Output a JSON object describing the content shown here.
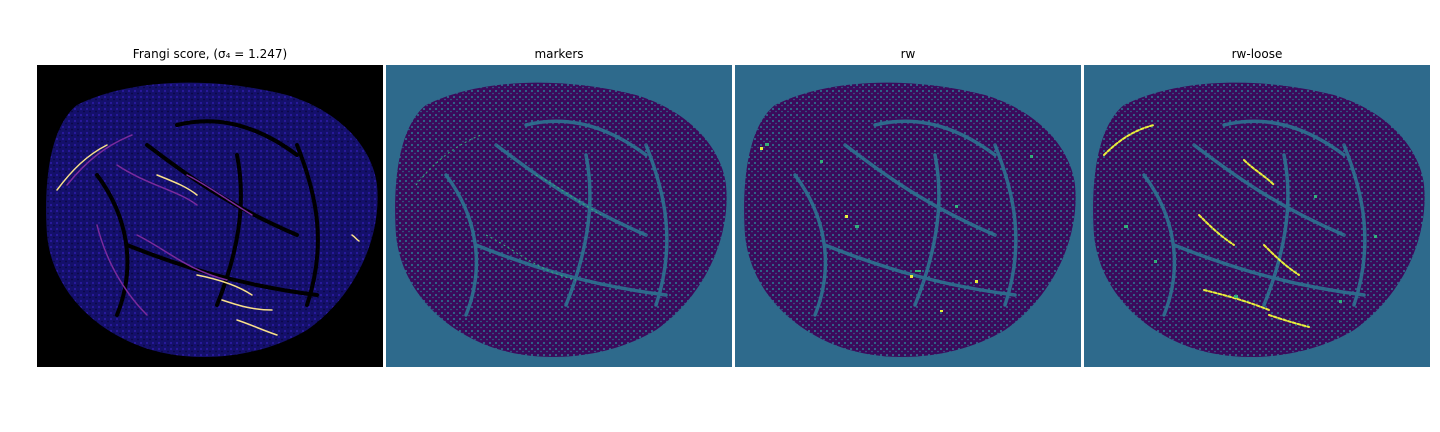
{
  "panels": [
    {
      "title": "Frangi score, (σ₄ = 1.247)",
      "colormap": "magma",
      "background": "#000000"
    },
    {
      "title": "markers",
      "colormap": "viridis",
      "background": "#2e6a8c"
    },
    {
      "title": "rw",
      "colormap": "viridis",
      "background": "#2e6a8c"
    },
    {
      "title": "rw-loose",
      "colormap": "viridis",
      "background": "#2e6a8c"
    }
  ],
  "colors": {
    "tissue_dark": "#3b0a5b",
    "tissue_frangi": "#1b0c7a",
    "vessel_frangi": "#7a2a9c",
    "vessel_highlight": "#f9e08a",
    "viridis_teal": "#2e6a8c",
    "viridis_green": "#33b07a",
    "viridis_yellow": "#eaf03a"
  }
}
